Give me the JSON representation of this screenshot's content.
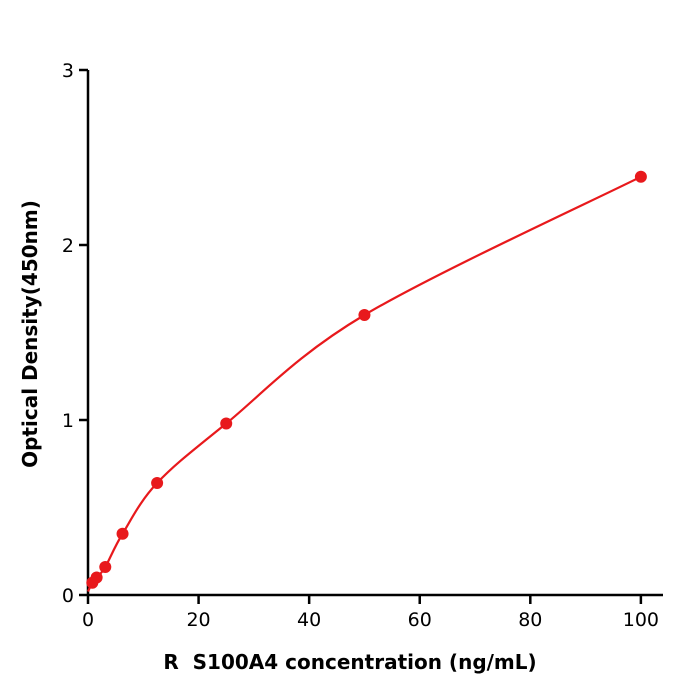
{
  "figure": {
    "background": "#ffffff",
    "axis_color": "#000000",
    "accent_red": "#e8191c"
  },
  "chart_data": {
    "type": "scatter",
    "title": "",
    "xlabel": "R  S100A4 concentration (ng/mL)",
    "ylabel": "Optical Density(450nm)",
    "x": [
      0.78,
      1.56,
      3.125,
      6.25,
      12.5,
      25,
      50,
      100
    ],
    "y": [
      0.07,
      0.1,
      0.16,
      0.35,
      0.64,
      0.98,
      1.6,
      2.39
    ],
    "curve_start": [
      0,
      0.02
    ],
    "xlim": [
      0,
      104
    ],
    "ylim": [
      0,
      3
    ],
    "xticks": [
      0,
      20,
      40,
      60,
      80,
      100
    ],
    "yticks": [
      0,
      1,
      2,
      3
    ],
    "marker_color": "#e8191c",
    "line_color": "#e8191c",
    "marker_radius": 6,
    "line_width": 2.2,
    "grid": false,
    "legend": null
  }
}
